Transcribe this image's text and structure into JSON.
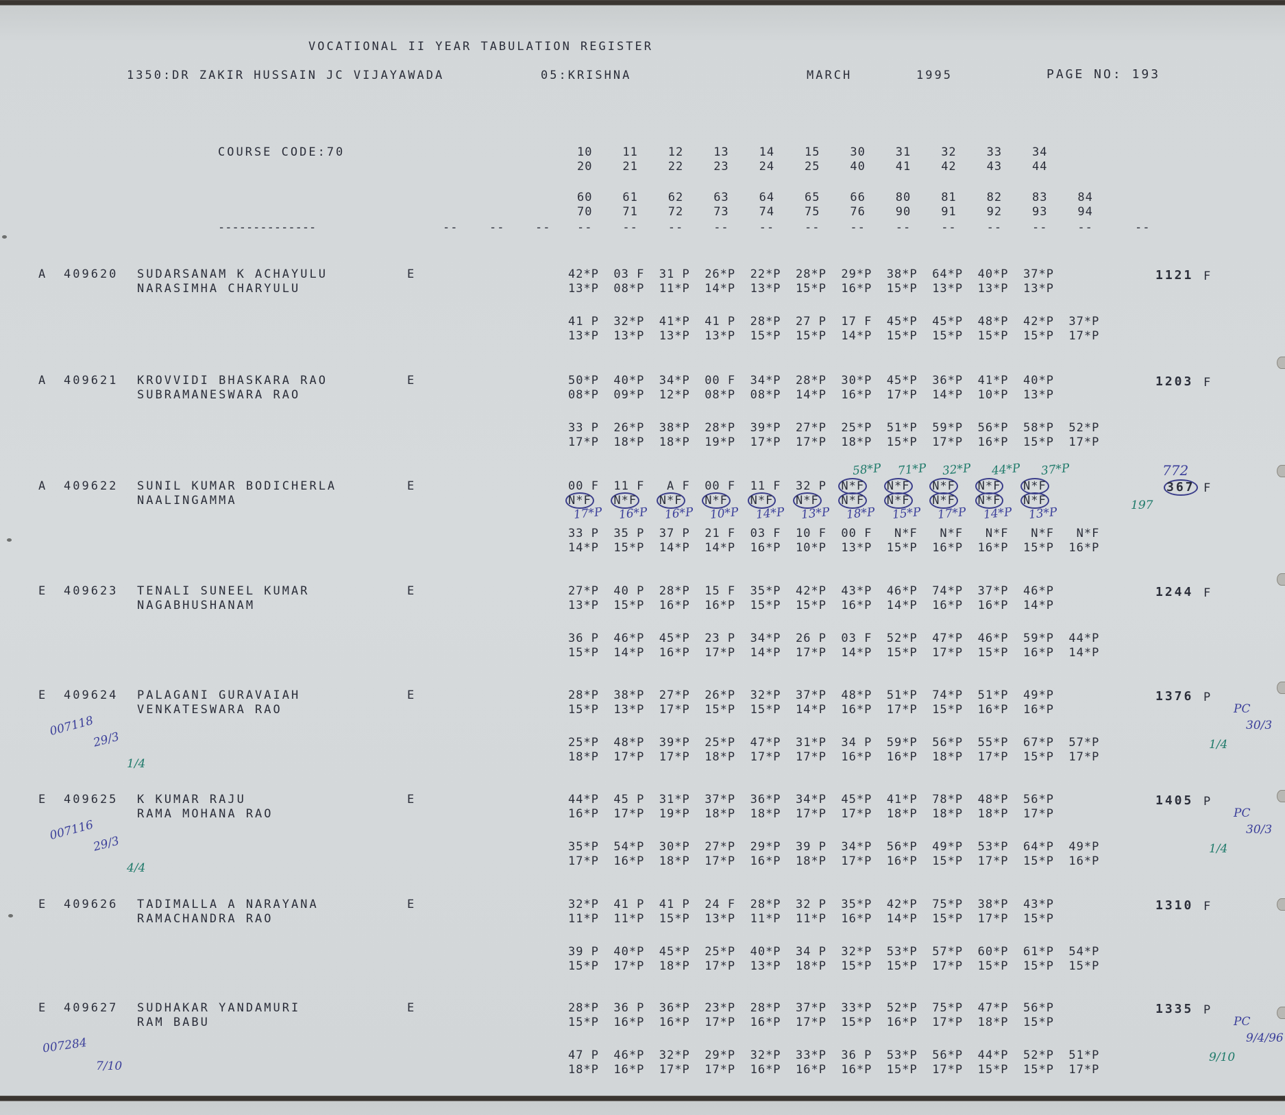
{
  "header": {
    "title": "VOCATIONAL II YEAR TABULATION REGISTER",
    "college": "1350:DR ZAKIR HUSSAIN JC VIJAYAWADA",
    "district": "05:KRISHNA",
    "month": "MARCH",
    "year": "1995",
    "page": "PAGE NO: 193",
    "course_code": "COURSE CODE:70"
  },
  "column_headers": [
    [
      "10",
      "11",
      "12",
      "13",
      "14",
      "15",
      "30",
      "31",
      "32",
      "33",
      "34"
    ],
    [
      "20",
      "21",
      "22",
      "23",
      "24",
      "25",
      "40",
      "41",
      "42",
      "43",
      "44"
    ],
    [
      "60",
      "61",
      "62",
      "63",
      "64",
      "65",
      "66",
      "80",
      "81",
      "82",
      "83",
      "84"
    ],
    [
      "70",
      "71",
      "72",
      "73",
      "74",
      "75",
      "76",
      "90",
      "91",
      "92",
      "93",
      "94"
    ]
  ],
  "separator": {
    "long": "--------------",
    "short": "--"
  },
  "students": [
    {
      "grade": "A",
      "roll": "409620",
      "name1": "SUDARSANAM K ACHAYULU",
      "name2": "NARASIMHA CHARYULU",
      "medium": "E",
      "total": "1121",
      "result": "F",
      "rows": [
        [
          "42*P",
          "03 F",
          "31 P",
          "26*P",
          "22*P",
          "28*P",
          "29*P",
          "38*P",
          "64*P",
          "40*P",
          "37*P"
        ],
        [
          "13*P",
          "08*P",
          "11*P",
          "14*P",
          "13*P",
          "15*P",
          "16*P",
          "15*P",
          "13*P",
          "13*P",
          "13*P"
        ],
        [
          "41 P",
          "32*P",
          "41*P",
          "41 P",
          "28*P",
          "27 P",
          "17 F",
          "45*P",
          "45*P",
          "48*P",
          "42*P",
          "37*P"
        ],
        [
          "13*P",
          "13*P",
          "13*P",
          "13*P",
          "15*P",
          "15*P",
          "14*P",
          "15*P",
          "15*P",
          "15*P",
          "15*P",
          "17*P"
        ]
      ]
    },
    {
      "grade": "A",
      "roll": "409621",
      "name1": "KROVVIDI BHASKARA RAO",
      "name2": "SUBRAMANESWARA RAO",
      "medium": "E",
      "total": "1203",
      "result": "F",
      "rows": [
        [
          "50*P",
          "40*P",
          "34*P",
          "00 F",
          "34*P",
          "28*P",
          "30*P",
          "45*P",
          "36*P",
          "41*P",
          "40*P"
        ],
        [
          "08*P",
          "09*P",
          "12*P",
          "08*P",
          "08*P",
          "14*P",
          "16*P",
          "17*P",
          "14*P",
          "10*P",
          "13*P"
        ],
        [
          "33 P",
          "26*P",
          "38*P",
          "28*P",
          "39*P",
          "27*P",
          "25*P",
          "51*P",
          "59*P",
          "56*P",
          "58*P",
          "52*P"
        ],
        [
          "17*P",
          "18*P",
          "18*P",
          "19*P",
          "17*P",
          "17*P",
          "18*P",
          "15*P",
          "17*P",
          "16*P",
          "15*P",
          "17*P"
        ]
      ]
    },
    {
      "grade": "A",
      "roll": "409622",
      "name1": "SUNIL KUMAR BODICHERLA",
      "name2": "NAALINGAMMA",
      "medium": "E",
      "total": "367",
      "result": "F",
      "total_circled": true,
      "rows": [
        [
          "00 F",
          "11 F",
          " A F",
          "00 F",
          "11 F",
          "32 P",
          "N*F",
          "N*F",
          "N*F",
          "N*F",
          "N*F"
        ],
        [
          "N*F",
          "N*F",
          "N*F",
          "N*F",
          "N*F",
          "N*F",
          "N*F",
          "N*F",
          "N*F",
          "N*F",
          "N*F"
        ],
        [
          "33 P",
          "35 P",
          "37 P",
          "21 F",
          "03 F",
          "10 F",
          "00 F",
          " N*F",
          " N*F",
          " N*F",
          " N*F",
          " N*F"
        ],
        [
          "14*P",
          "15*P",
          "14*P",
          "14*P",
          "16*P",
          "10*P",
          "13*P",
          "15*P",
          "16*P",
          "16*P",
          "15*P",
          "16*P"
        ]
      ],
      "circled": [
        [
          6,
          7,
          8,
          9,
          10
        ],
        [
          0,
          1,
          2,
          3,
          4,
          5,
          6,
          7,
          8,
          9,
          10
        ]
      ],
      "corrections_upper": [
        "58*P",
        "71*P",
        "32*P",
        "44*P",
        "37*P"
      ],
      "corrections_lower": [
        "17*P",
        "16*P",
        "16*P",
        "10*P",
        "14*P",
        "13*P",
        "18*P",
        "15*P",
        "17*P",
        "14*P",
        "13*P"
      ],
      "revised_total": "772",
      "note": "197"
    },
    {
      "grade": "E",
      "roll": "409623",
      "name1": "TENALI SUNEEL KUMAR",
      "name2": "NAGABHUSHANAM",
      "medium": "E",
      "total": "1244",
      "result": "F",
      "rows": [
        [
          "27*P",
          "40 P",
          "28*P",
          "15 F",
          "35*P",
          "42*P",
          "43*P",
          "46*P",
          "74*P",
          "37*P",
          "46*P"
        ],
        [
          "13*P",
          "15*P",
          "16*P",
          "16*P",
          "15*P",
          "15*P",
          "16*P",
          "14*P",
          "16*P",
          "16*P",
          "14*P"
        ],
        [
          "36 P",
          "46*P",
          "45*P",
          "23 P",
          "34*P",
          "26 P",
          "03 F",
          "52*P",
          "47*P",
          "46*P",
          "59*P",
          "44*P"
        ],
        [
          "15*P",
          "14*P",
          "16*P",
          "17*P",
          "14*P",
          "17*P",
          "14*P",
          "15*P",
          "17*P",
          "15*P",
          "16*P",
          "14*P"
        ]
      ]
    },
    {
      "grade": "E",
      "roll": "409624",
      "name1": "PALAGANI GURAVAIAH",
      "name2": "VENKATESWARA RAO",
      "medium": "E",
      "total": "1376",
      "result": "P",
      "rows": [
        [
          "28*P",
          "38*P",
          "27*P",
          "26*P",
          "32*P",
          "37*P",
          "48*P",
          "51*P",
          "74*P",
          "51*P",
          "49*P"
        ],
        [
          "15*P",
          "13*P",
          "17*P",
          "15*P",
          "15*P",
          "14*P",
          "16*P",
          "17*P",
          "15*P",
          "16*P",
          "16*P"
        ],
        [
          "25*P",
          "48*P",
          "39*P",
          "25*P",
          "47*P",
          "31*P",
          "34 P",
          "59*P",
          "56*P",
          "55*P",
          "67*P",
          "57*P"
        ],
        [
          "18*P",
          "17*P",
          "17*P",
          "18*P",
          "17*P",
          "17*P",
          "16*P",
          "16*P",
          "18*P",
          "17*P",
          "15*P",
          "17*P"
        ]
      ],
      "margin_left": [
        "007118",
        "29/3",
        "1/4"
      ],
      "margin_right": [
        "PC",
        "30/3",
        "1/4"
      ]
    },
    {
      "grade": "E",
      "roll": "409625",
      "name1": "K KUMAR RAJU",
      "name2": "RAMA MOHANA RAO",
      "medium": "E",
      "total": "1405",
      "result": "P",
      "rows": [
        [
          "44*P",
          "45 P",
          "31*P",
          "37*P",
          "36*P",
          "34*P",
          "45*P",
          "41*P",
          "78*P",
          "48*P",
          "56*P"
        ],
        [
          "16*P",
          "17*P",
          "19*P",
          "18*P",
          "18*P",
          "17*P",
          "17*P",
          "18*P",
          "18*P",
          "18*P",
          "17*P"
        ],
        [
          "35*P",
          "54*P",
          "30*P",
          "27*P",
          "29*P",
          "39 P",
          "34*P",
          "56*P",
          "49*P",
          "53*P",
          "64*P",
          "49*P"
        ],
        [
          "17*P",
          "16*P",
          "18*P",
          "17*P",
          "16*P",
          "18*P",
          "17*P",
          "16*P",
          "15*P",
          "17*P",
          "15*P",
          "16*P"
        ]
      ],
      "margin_left": [
        "007116",
        "29/3",
        "4/4"
      ],
      "margin_right": [
        "PC",
        "30/3",
        "1/4"
      ]
    },
    {
      "grade": "E",
      "roll": "409626",
      "name1": "TADIMALLA A NARAYANA",
      "name2": "RAMACHANDRA RAO",
      "medium": "E",
      "total": "1310",
      "result": "F",
      "rows": [
        [
          "32*P",
          "41 P",
          "41 P",
          "24 F",
          "28*P",
          "32 P",
          "35*P",
          "42*P",
          "75*P",
          "38*P",
          "43*P"
        ],
        [
          "11*P",
          "11*P",
          "15*P",
          "13*P",
          "11*P",
          "11*P",
          "16*P",
          "14*P",
          "15*P",
          "17*P",
          "15*P"
        ],
        [
          "39 P",
          "40*P",
          "45*P",
          "25*P",
          "40*P",
          "34 P",
          "32*P",
          "53*P",
          "57*P",
          "60*P",
          "61*P",
          "54*P"
        ],
        [
          "15*P",
          "17*P",
          "18*P",
          "17*P",
          "13*P",
          "18*P",
          "15*P",
          "15*P",
          "17*P",
          "15*P",
          "15*P",
          "15*P"
        ]
      ]
    },
    {
      "grade": "E",
      "roll": "409627",
      "name1": "SUDHAKAR YANDAMURI",
      "name2": "RAM BABU",
      "medium": "E",
      "total": "1335",
      "result": "P",
      "rows": [
        [
          "28*P",
          "36 P",
          "36*P",
          "23*P",
          "28*P",
          "37*P",
          "33*P",
          "52*P",
          "75*P",
          "47*P",
          "56*P"
        ],
        [
          "15*P",
          "16*P",
          "16*P",
          "17*P",
          "16*P",
          "17*P",
          "15*P",
          "16*P",
          "17*P",
          "18*P",
          "15*P"
        ],
        [
          "47 P",
          "46*P",
          "32*P",
          "29*P",
          "32*P",
          "33*P",
          "36 P",
          "53*P",
          "56*P",
          "44*P",
          "52*P",
          "51*P"
        ],
        [
          "18*P",
          "16*P",
          "17*P",
          "17*P",
          "16*P",
          "16*P",
          "16*P",
          "15*P",
          "17*P",
          "15*P",
          "15*P",
          "17*P"
        ]
      ],
      "margin_left": [
        "007284",
        "7/10"
      ],
      "margin_right": [
        "PC",
        "9/4/96",
        "9/10"
      ]
    }
  ],
  "colors": {
    "paper": "#d4d8da",
    "print": "#2b2e3a",
    "ink_blue": "#3b3f9a",
    "ink_green": "#1f7a6a"
  }
}
